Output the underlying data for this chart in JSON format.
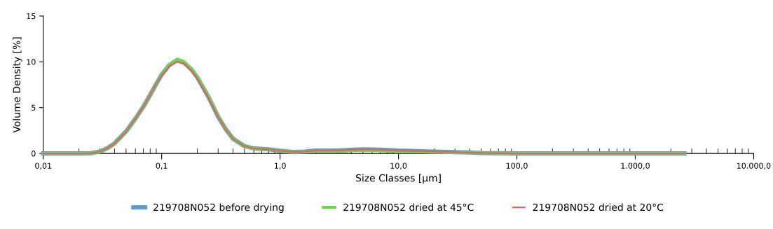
{
  "chart_data": {
    "type": "line",
    "xlabel": "Size Classes [µm]",
    "ylabel": "Volume Density [%]",
    "log": "x",
    "x": [
      0.01,
      0.02,
      0.025,
      0.03,
      0.035,
      0.04,
      0.05,
      0.06,
      0.07,
      0.08,
      0.09,
      0.1,
      0.115,
      0.135,
      0.155,
      0.18,
      0.2,
      0.25,
      0.3,
      0.35,
      0.4,
      0.5,
      0.6,
      0.8,
      1.0,
      1.3,
      1.6,
      2,
      3,
      5,
      7,
      10,
      20,
      40,
      50,
      100,
      1000,
      2600
    ],
    "series": [
      {
        "name": "219708N052 before drying",
        "color": "#5b9bd5",
        "values": [
          0,
          0,
          0.02,
          0.2,
          0.6,
          1.1,
          2.4,
          3.8,
          5.1,
          6.4,
          7.6,
          8.6,
          9.6,
          10.2,
          9.9,
          9.1,
          8.3,
          6.1,
          4.0,
          2.6,
          1.6,
          0.8,
          0.55,
          0.45,
          0.3,
          0.15,
          0.2,
          0.3,
          0.3,
          0.45,
          0.4,
          0.3,
          0.2,
          0.1,
          0.05,
          0,
          0,
          0
        ]
      },
      {
        "name": "219708N052 dried at 45°C",
        "color": "#6bd84f",
        "values": [
          0,
          0,
          0.02,
          0.2,
          0.6,
          1.1,
          2.4,
          3.8,
          5.1,
          6.4,
          7.6,
          8.6,
          9.7,
          10.3,
          10.0,
          9.2,
          8.4,
          6.2,
          4.1,
          2.6,
          1.6,
          0.8,
          0.55,
          0.45,
          0.3,
          0.15,
          0.2,
          0.25,
          0.25,
          0.35,
          0.3,
          0.2,
          0.15,
          0.1,
          0.05,
          0,
          0,
          0
        ]
      },
      {
        "name": "219708N052 dried at 20°C",
        "color": "#e8605a",
        "values": [
          0,
          0,
          0.02,
          0.2,
          0.6,
          1.1,
          2.4,
          3.8,
          5.1,
          6.4,
          7.6,
          8.5,
          9.5,
          10.0,
          9.8,
          9.0,
          8.2,
          6.0,
          4.0,
          2.6,
          1.6,
          0.8,
          0.55,
          0.45,
          0.3,
          0.15,
          0.2,
          0.3,
          0.3,
          0.45,
          0.4,
          0.3,
          0.2,
          0.1,
          0.05,
          0,
          0,
          0
        ]
      }
    ],
    "xlim": [
      0.01,
      10000
    ],
    "xticks": [
      {
        "value": 0.01,
        "label": "0,01"
      },
      {
        "value": 0.1,
        "label": "0,1"
      },
      {
        "value": 1,
        "label": "1,0"
      },
      {
        "value": 10,
        "label": "10,0"
      },
      {
        "value": 100,
        "label": "100,0"
      },
      {
        "value": 1000,
        "label": "1.000,0"
      },
      {
        "value": 10000,
        "label": "10.000,0"
      }
    ],
    "ylim": [
      0,
      15
    ],
    "yticks": [
      0,
      5,
      10,
      15
    ],
    "grid": false,
    "legend": "bottom",
    "marker": "none",
    "line_style": "solid"
  }
}
